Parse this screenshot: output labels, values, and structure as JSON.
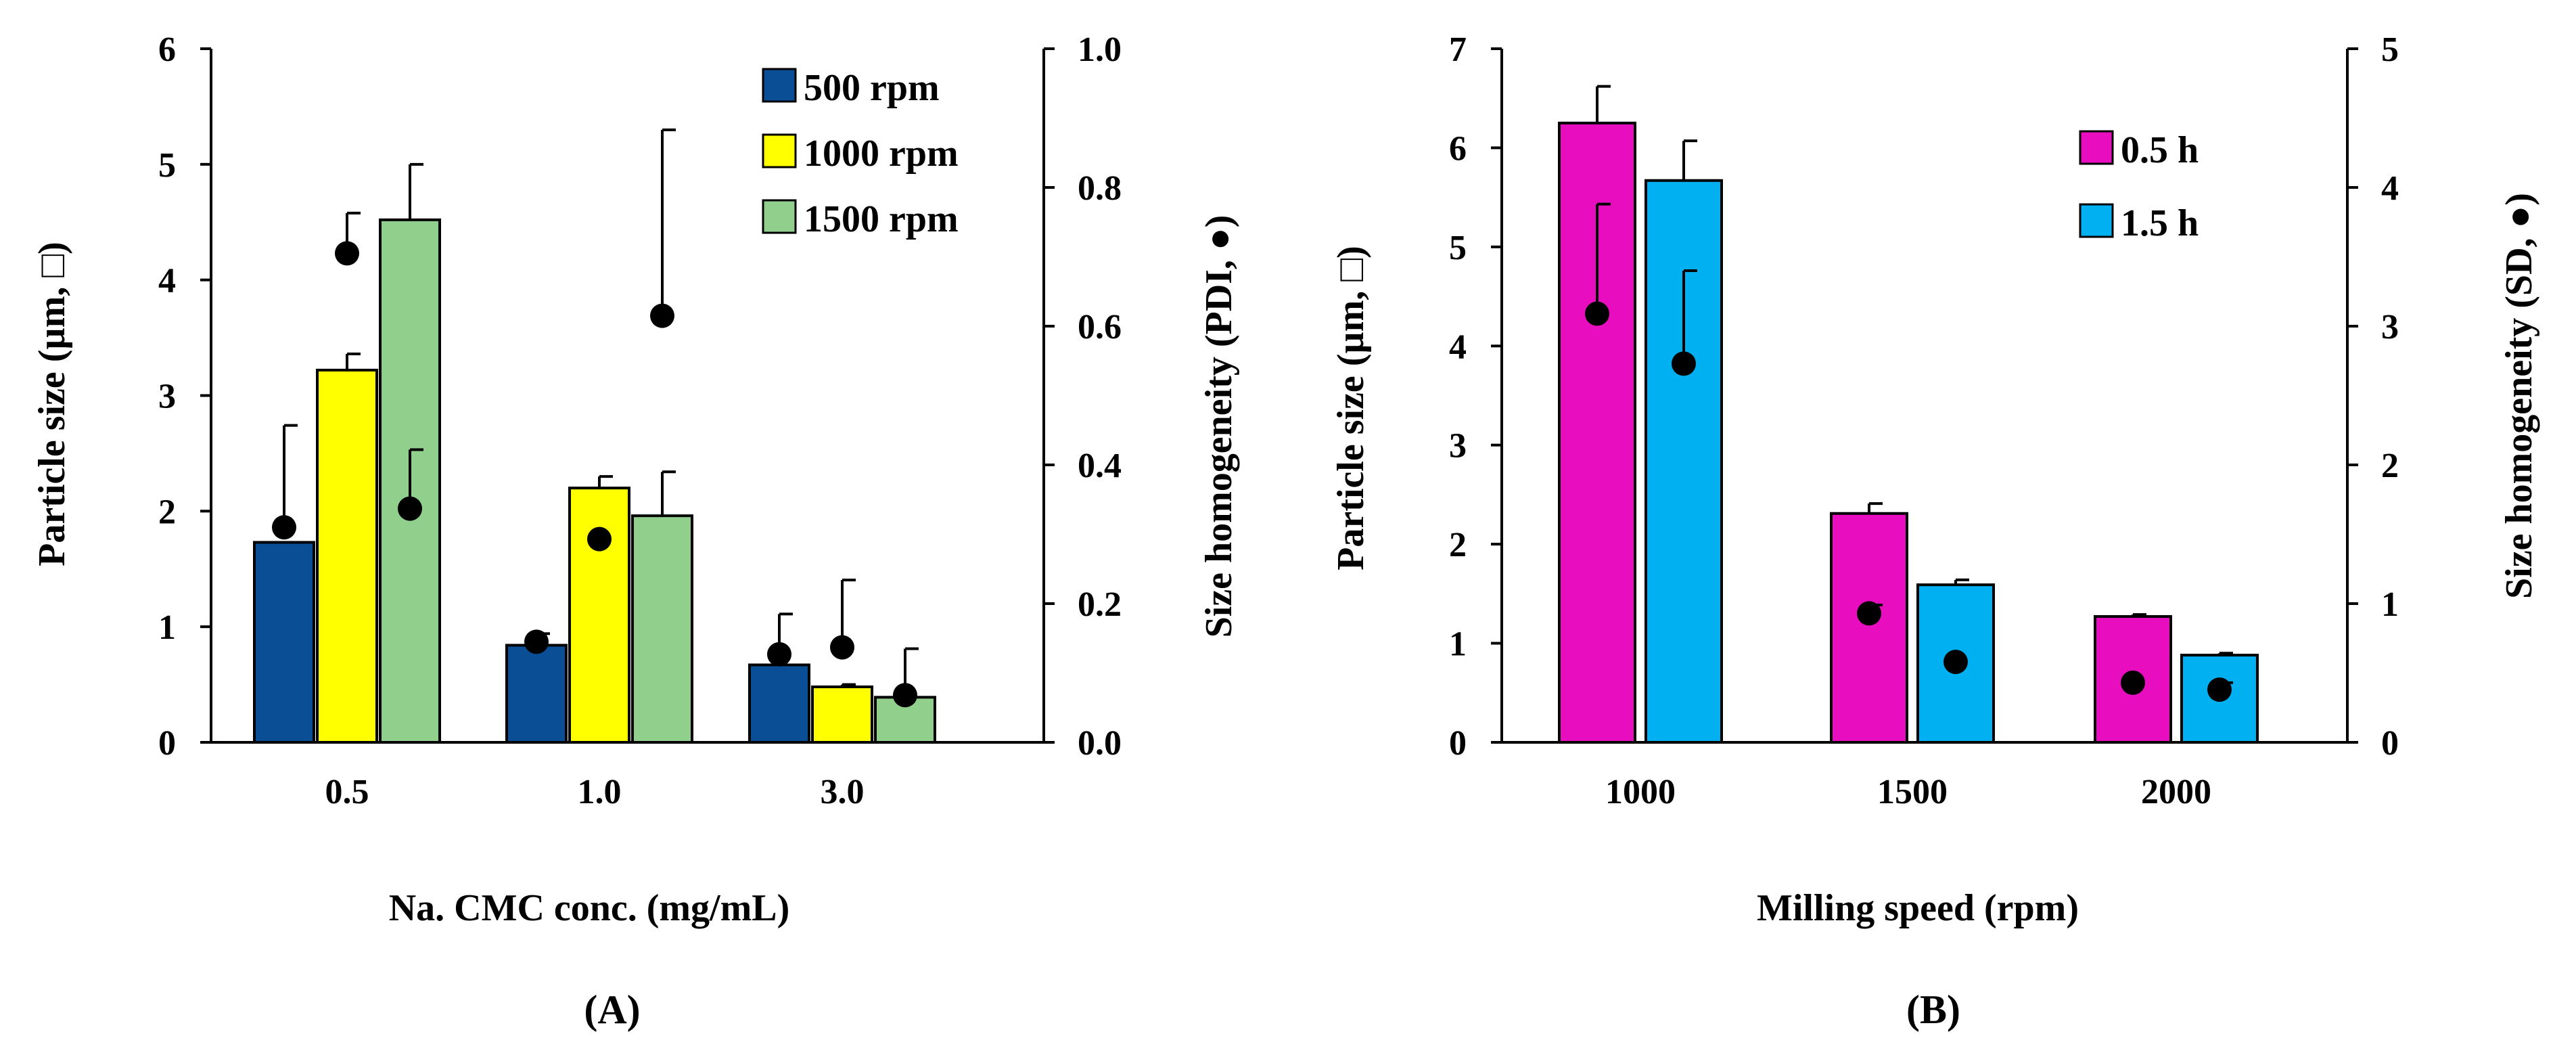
{
  "chart_data": [
    {
      "type": "bar",
      "panel_label_open": "(",
      "panel_label": "A",
      "panel_label_close": ")",
      "xlabel": "Na. CMC conc. (mg/mL)",
      "ylabel": "Particle size (µm, □)",
      "ylabel2": "Size homogeneity (PDI, ●)",
      "categories": [
        "0.5",
        "1.0",
        "3.0"
      ],
      "ylim": [
        0,
        6
      ],
      "yticks": [
        "0",
        "1",
        "2",
        "3",
        "4",
        "5",
        "6"
      ],
      "ylim2": [
        0,
        1
      ],
      "yticks2": [
        "0.0",
        "0.2",
        "0.4",
        "0.6",
        "0.8",
        "1.0"
      ],
      "legend_position": "top-right",
      "series": [
        {
          "name": "500 rpm",
          "color": "#0a4f96",
          "values": [
            1.73,
            0.84,
            0.67
          ],
          "errors": [
            0,
            0.1,
            0
          ],
          "pdi": [
            0.31,
            0.145,
            0.127
          ],
          "pdi_errors": [
            0.147,
            0,
            0.058
          ]
        },
        {
          "name": "1000 rpm",
          "color": "#ffff00",
          "values": [
            3.22,
            2.2,
            0.48
          ],
          "errors": [
            0.14,
            0.1,
            0.02
          ],
          "pdi": [
            0.705,
            0.293,
            0.137
          ],
          "pdi_errors": [
            0.058,
            0,
            0.097
          ]
        },
        {
          "name": "1500 rpm",
          "color": "#91d08c",
          "values": [
            4.52,
            1.96,
            0.39
          ],
          "errors": [
            0.48,
            0.38,
            0.42
          ],
          "pdi": [
            0.337,
            0.615,
            0.068
          ],
          "pdi_errors": [
            0.085,
            0.268,
            0
          ]
        }
      ]
    },
    {
      "type": "bar",
      "panel_label_open": "(",
      "panel_label": "B",
      "panel_label_close": ")",
      "xlabel": "Milling speed (rpm)",
      "ylabel": "Particle size (µm, □)",
      "ylabel2": "Size homogeneity (SD, ●)",
      "categories": [
        "1000",
        "1500",
        "2000"
      ],
      "ylim": [
        0,
        7
      ],
      "yticks": [
        "0",
        "1",
        "2",
        "3",
        "4",
        "5",
        "6",
        "7"
      ],
      "ylim2": [
        0,
        5
      ],
      "yticks2": [
        "0",
        "1",
        "2",
        "3",
        "4",
        "5"
      ],
      "legend_position": "top-right",
      "series": [
        {
          "name": "0.5 h",
          "color": "#e80ebf",
          "values": [
            6.25,
            2.31,
            1.27
          ],
          "errors": [
            0.37,
            0.1,
            0.02
          ],
          "pdi": [
            3.09,
            0.93,
            0.43
          ],
          "pdi_errors": [
            0.79,
            0.06,
            0
          ]
        },
        {
          "name": "1.5 h",
          "color": "#00b0f0",
          "values": [
            5.67,
            1.59,
            0.88
          ],
          "errors": [
            0.4,
            0.05,
            0.02
          ],
          "pdi": [
            2.73,
            0.58,
            0.38
          ],
          "pdi_errors": [
            0.67,
            0,
            0.05
          ]
        }
      ]
    }
  ]
}
